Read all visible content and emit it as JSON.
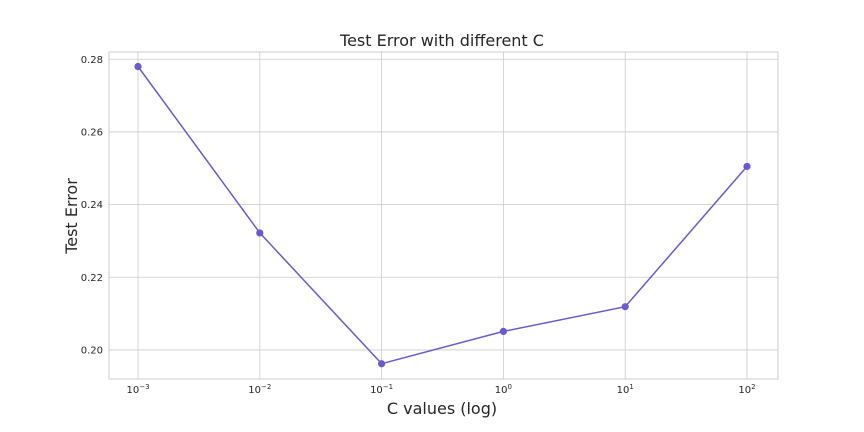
{
  "chart_data": {
    "type": "line",
    "title": "Test Error with different C",
    "xlabel": "C values (log)",
    "ylabel": "Test Error",
    "x_scale": "log",
    "x": [
      0.001,
      0.01,
      0.1,
      1,
      10,
      100
    ],
    "x_tick_labels": [
      {
        "base": "10",
        "exp": "−3"
      },
      {
        "base": "10",
        "exp": "−2"
      },
      {
        "base": "10",
        "exp": "−1"
      },
      {
        "base": "10",
        "exp": "0"
      },
      {
        "base": "10",
        "exp": "1"
      },
      {
        "base": "10",
        "exp": "2"
      }
    ],
    "series": [
      {
        "values": [
          0.278,
          0.2322,
          0.1962,
          0.2051,
          0.2119,
          0.2505
        ],
        "color": "#6a5acd",
        "marker": "circle"
      }
    ],
    "y_ticks": [
      "0.20",
      "0.22",
      "0.24",
      "0.26",
      "0.28"
    ],
    "ylim": [
      0.192,
      0.282
    ],
    "grid": true
  }
}
